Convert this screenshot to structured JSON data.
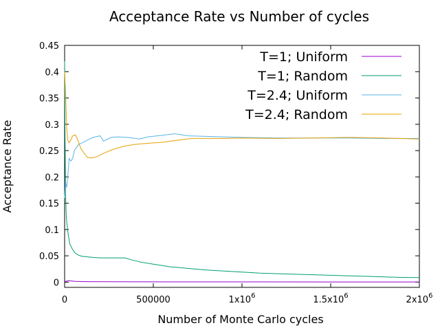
{
  "chart_data": {
    "type": "line",
    "title": "Acceptance Rate vs Number of cycles",
    "xlabel": "Number of Monte Carlo cycles",
    "ylabel": "Acceptance Rate",
    "xlim": [
      0,
      2000000
    ],
    "ylim": [
      -0.01,
      0.45
    ],
    "x_ticks": [
      {
        "value": 0,
        "label": "0"
      },
      {
        "value": 500000,
        "label": "500000"
      },
      {
        "value": 1000000,
        "label": "1x10",
        "exp": "6"
      },
      {
        "value": 1500000,
        "label": "1.5x10",
        "exp": "6"
      },
      {
        "value": 2000000,
        "label": "2x10",
        "exp": "6"
      }
    ],
    "y_ticks": [
      {
        "value": 0,
        "label": "0"
      },
      {
        "value": 0.05,
        "label": "0.05"
      },
      {
        "value": 0.1,
        "label": "0.1"
      },
      {
        "value": 0.15,
        "label": "0.15"
      },
      {
        "value": 0.2,
        "label": "0.2"
      },
      {
        "value": 0.25,
        "label": "0.25"
      },
      {
        "value": 0.3,
        "label": "0.3"
      },
      {
        "value": 0.35,
        "label": "0.35"
      },
      {
        "value": 0.4,
        "label": "0.4"
      },
      {
        "value": 0.45,
        "label": "0.45"
      }
    ],
    "grid": false,
    "legend_position": "top-right",
    "series": [
      {
        "name": "T=1; Uniform",
        "color": "#9400d3",
        "points": [
          [
            0,
            0.001
          ],
          [
            20000,
            0.0025
          ],
          [
            40000,
            0.002
          ],
          [
            60000,
            0.0015
          ],
          [
            80000,
            0.0012
          ],
          [
            100000,
            0.001
          ],
          [
            200000,
            0.0008
          ],
          [
            400000,
            0.0006
          ],
          [
            700000,
            0.0005
          ],
          [
            1000000,
            0.0004
          ],
          [
            1500000,
            0.0003
          ],
          [
            2000000,
            0.0003
          ]
        ]
      },
      {
        "name": "T=1; Random",
        "color": "#009e73",
        "points": [
          [
            0,
            0.42
          ],
          [
            2000,
            0.3
          ],
          [
            5000,
            0.17
          ],
          [
            10000,
            0.12
          ],
          [
            20000,
            0.09
          ],
          [
            30000,
            0.072
          ],
          [
            45000,
            0.062
          ],
          [
            60000,
            0.055
          ],
          [
            80000,
            0.051
          ],
          [
            100000,
            0.049
          ],
          [
            130000,
            0.048
          ],
          [
            160000,
            0.047
          ],
          [
            200000,
            0.046
          ],
          [
            250000,
            0.046
          ],
          [
            300000,
            0.046
          ],
          [
            340000,
            0.046
          ],
          [
            380000,
            0.042
          ],
          [
            430000,
            0.038
          ],
          [
            500000,
            0.034
          ],
          [
            600000,
            0.029
          ],
          [
            700000,
            0.026
          ],
          [
            800000,
            0.023
          ],
          [
            900000,
            0.021
          ],
          [
            1000000,
            0.019
          ],
          [
            1100000,
            0.017
          ],
          [
            1200000,
            0.016
          ],
          [
            1300000,
            0.015
          ],
          [
            1400000,
            0.014
          ],
          [
            1500000,
            0.013
          ],
          [
            1600000,
            0.012
          ],
          [
            1700000,
            0.011
          ],
          [
            1800000,
            0.01
          ],
          [
            1900000,
            0.009
          ],
          [
            2000000,
            0.0085
          ]
        ]
      },
      {
        "name": "T=2.4; Uniform",
        "color": "#56b4e9",
        "points": [
          [
            0,
            0.16
          ],
          [
            5000,
            0.19
          ],
          [
            12000,
            0.18
          ],
          [
            20000,
            0.21
          ],
          [
            25000,
            0.235
          ],
          [
            35000,
            0.23
          ],
          [
            45000,
            0.235
          ],
          [
            55000,
            0.25
          ],
          [
            65000,
            0.255
          ],
          [
            80000,
            0.262
          ],
          [
            100000,
            0.265
          ],
          [
            130000,
            0.27
          ],
          [
            160000,
            0.275
          ],
          [
            200000,
            0.278
          ],
          [
            220000,
            0.268
          ],
          [
            260000,
            0.275
          ],
          [
            300000,
            0.276
          ],
          [
            360000,
            0.275
          ],
          [
            420000,
            0.272
          ],
          [
            470000,
            0.276
          ],
          [
            520000,
            0.278
          ],
          [
            570000,
            0.28
          ],
          [
            620000,
            0.282
          ],
          [
            700000,
            0.278
          ],
          [
            800000,
            0.277
          ],
          [
            900000,
            0.276
          ],
          [
            1000000,
            0.275
          ],
          [
            1200000,
            0.274
          ],
          [
            1400000,
            0.274
          ],
          [
            1600000,
            0.274
          ],
          [
            1800000,
            0.273
          ],
          [
            2000000,
            0.273
          ]
        ]
      },
      {
        "name": "T=2.4; Random",
        "color": "#e69f00",
        "points": [
          [
            0,
            0.4
          ],
          [
            4000,
            0.37
          ],
          [
            8000,
            0.33
          ],
          [
            12000,
            0.29
          ],
          [
            18000,
            0.27
          ],
          [
            25000,
            0.265
          ],
          [
            35000,
            0.27
          ],
          [
            45000,
            0.278
          ],
          [
            60000,
            0.28
          ],
          [
            75000,
            0.27
          ],
          [
            90000,
            0.255
          ],
          [
            110000,
            0.245
          ],
          [
            130000,
            0.237
          ],
          [
            150000,
            0.236
          ],
          [
            180000,
            0.238
          ],
          [
            220000,
            0.245
          ],
          [
            270000,
            0.252
          ],
          [
            330000,
            0.258
          ],
          [
            400000,
            0.262
          ],
          [
            480000,
            0.264
          ],
          [
            560000,
            0.266
          ],
          [
            640000,
            0.27
          ],
          [
            720000,
            0.273
          ],
          [
            800000,
            0.273
          ],
          [
            900000,
            0.273
          ],
          [
            1000000,
            0.274
          ],
          [
            1200000,
            0.273
          ],
          [
            1400000,
            0.274
          ],
          [
            1600000,
            0.275
          ],
          [
            1800000,
            0.274
          ],
          [
            2000000,
            0.272
          ]
        ]
      }
    ]
  }
}
